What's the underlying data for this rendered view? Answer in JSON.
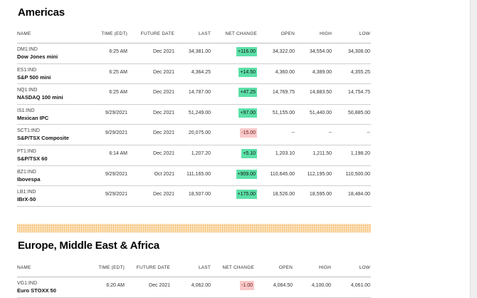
{
  "americas": {
    "title": "Americas",
    "headers": {
      "name": "NAME",
      "time": "TIME (EDT)",
      "future": "FUTURE DATE",
      "last": "LAST",
      "change": "NET CHANGE",
      "open": "OPEN",
      "high": "HIGH",
      "low": "LOW"
    },
    "rows": [
      {
        "symbol": "DM1:IND",
        "name": "Dow Jones mini",
        "time": "6:25 AM",
        "future": "Dec 2021",
        "last": "34,381.00",
        "change": "+116.00",
        "dir": "pos",
        "open": "34,322.00",
        "high": "34,554.00",
        "low": "34,308.00"
      },
      {
        "symbol": "ES1:IND",
        "name": "S&P 500 mini",
        "time": "6:25 AM",
        "future": "Dec 2021",
        "last": "4,364.25",
        "change": "+14.50",
        "dir": "pos",
        "open": "4,360.00",
        "high": "4,389.00",
        "low": "4,355.25"
      },
      {
        "symbol": "NQ1:IND",
        "name": "NASDAQ 100 mini",
        "time": "6:25 AM",
        "future": "Dec 2021",
        "last": "14,787.00",
        "change": "+47.25",
        "dir": "pos",
        "open": "14,769.75",
        "high": "14,883.50",
        "low": "14,754.75"
      },
      {
        "symbol": "IS1:IND",
        "name": "Mexican IPC",
        "time": "9/29/2021",
        "future": "Dec 2021",
        "last": "51,249.00",
        "change": "+97.00",
        "dir": "pos",
        "open": "51,155.00",
        "high": "51,440.00",
        "low": "50,885.00"
      },
      {
        "symbol": "SCT1:IND",
        "name": "S&P/TSX Composite",
        "time": "9/29/2021",
        "future": "Dec 2021",
        "last": "20,075.00",
        "change": "-15.00",
        "dir": "neg",
        "open": "--",
        "high": "--",
        "low": "--"
      },
      {
        "symbol": "PT1:IND",
        "name": "S&P/TSX 60",
        "time": "6:14 AM",
        "future": "Dec 2021",
        "last": "1,207.20",
        "change": "+5.10",
        "dir": "pos",
        "open": "1,203.10",
        "high": "1,211.50",
        "low": "1,198.20"
      },
      {
        "symbol": "BZ1:IND",
        "name": "Ibovespa",
        "time": "9/29/2021",
        "future": "Oct 2021",
        "last": "111,165.00",
        "change": "+909.00",
        "dir": "pos",
        "open": "110,645.00",
        "high": "112,195.00",
        "low": "110,500.00"
      },
      {
        "symbol": "LB1:IND",
        "name": "IBrX-50",
        "time": "9/29/2021",
        "future": "Dec 2021",
        "last": "18,507.00",
        "change": "+175.00",
        "dir": "pos",
        "open": "18,526.00",
        "high": "18,595.00",
        "low": "18,484.00"
      }
    ]
  },
  "emea": {
    "title": "Europe, Middle East & Africa",
    "headers": {
      "name": "NAME",
      "time": "TIME (EDT)",
      "future": "FUTURE DATE",
      "last": "LAST",
      "change": "NET CHANGE",
      "open": "OPEN",
      "high": "HIGH",
      "low": "LOW"
    },
    "rows": [
      {
        "symbol": "VG1:IND",
        "name": "Euro STOXX 50",
        "time": "6:20 AM",
        "future": "Dec 2021",
        "last": "4,062.00",
        "change": "-1.00",
        "dir": "neg",
        "open": "4,064.50",
        "high": "4,100.00",
        "low": "4,061.00"
      }
    ]
  },
  "colors": {
    "positive": "#5ce0a8",
    "negative": "#f9c9c9",
    "divider": "#f7c98a"
  }
}
